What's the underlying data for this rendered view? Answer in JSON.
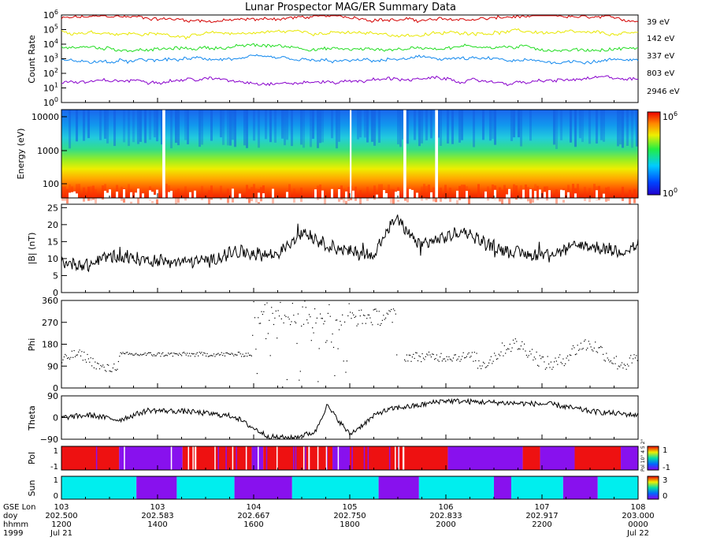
{
  "title": "Lunar Prospector MAG/ER Summary Data",
  "colors": {
    "c39": "#d40000",
    "c142": "#e8e800",
    "c337": "#22dd22",
    "c803": "#1188ee",
    "c2946": "#8800cc",
    "pol_pos": "#ee1111",
    "pol_neg": "#8811ee",
    "sun_lit": "#00eeee",
    "sun_dark": "#8811ee"
  },
  "chart_data": [
    {
      "type": "line",
      "panel": "count_rate",
      "ylabel": "Count Rate",
      "yscale": "log",
      "ylim": [
        1,
        1000000
      ],
      "yticks": [
        "10",
        "10",
        "10",
        "10",
        "10",
        "10",
        "10"
      ],
      "yexps": [
        "6",
        "5",
        "4",
        "3",
        "2",
        "1",
        "0"
      ],
      "series": [
        {
          "name": "39 eV",
          "base_log10": 5.75
        },
        {
          "name": "142 eV",
          "base_log10": 4.75
        },
        {
          "name": "337 eV",
          "base_log10": 3.75
        },
        {
          "name": "803 eV",
          "base_log10": 2.9
        },
        {
          "name": "2946 eV",
          "base_log10": 1.5
        }
      ]
    },
    {
      "type": "heatmap",
      "panel": "energy_spectrogram",
      "ylabel": "Energy (eV)",
      "yscale": "log",
      "yticks": [
        "10000",
        "1000",
        "100"
      ],
      "colorbar": {
        "base": "10",
        "min_exp": "0",
        "max_exp": "6"
      }
    },
    {
      "type": "line",
      "panel": "B_magnitude",
      "ylabel": "|B| (nT)",
      "ylim": [
        0,
        26
      ],
      "yticks": [
        "25",
        "20",
        "15",
        "10",
        "5",
        "0"
      ],
      "knots_t": [
        0,
        0.05,
        0.08,
        0.12,
        0.2,
        0.26,
        0.3,
        0.37,
        0.42,
        0.46,
        0.5,
        0.54,
        0.58,
        0.62,
        0.66,
        0.7,
        0.74,
        0.78,
        0.82,
        0.86,
        0.9,
        0.94,
        0.97,
        1
      ],
      "knots_v": [
        9,
        8,
        11,
        10,
        9,
        9.5,
        12,
        11,
        18,
        14,
        12,
        11,
        22,
        14,
        16,
        18,
        14,
        12,
        11,
        12,
        14,
        13,
        12,
        14
      ]
    },
    {
      "type": "scatter",
      "panel": "phi",
      "ylabel": "Phi",
      "ylim": [
        0,
        360
      ],
      "yticks": [
        "360",
        "270",
        "180",
        "90",
        "0"
      ]
    },
    {
      "type": "line",
      "panel": "theta",
      "ylabel": "Theta",
      "ylim": [
        -90,
        90
      ],
      "yticks": [
        "90",
        "0",
        "−90"
      ],
      "knots_t": [
        0,
        0.05,
        0.1,
        0.15,
        0.22,
        0.3,
        0.33,
        0.36,
        0.4,
        0.44,
        0.46,
        0.5,
        0.55,
        0.58,
        0.62,
        0.66,
        0.72,
        0.78,
        0.85,
        0.92,
        1
      ],
      "knots_v": [
        0,
        10,
        -10,
        30,
        25,
        5,
        -40,
        -80,
        -85,
        -60,
        50,
        -70,
        20,
        40,
        50,
        70,
        65,
        60,
        55,
        25,
        10
      ]
    },
    {
      "type": "heatmap",
      "panel": "polarity",
      "ylabel": "Pol",
      "yticks": [
        "1",
        "-1"
      ],
      "colorbar_ticks": [
        "1",
        "-1"
      ],
      "bands": [
        [
          "pos",
          0,
          0.1
        ],
        [
          "neg",
          0.1,
          0.21
        ],
        [
          "pos",
          0.21,
          0.33
        ],
        [
          "neg",
          0.33,
          0.35
        ],
        [
          "pos",
          0.35,
          0.47
        ],
        [
          "neg",
          0.47,
          0.5
        ],
        [
          "pos",
          0.5,
          0.67
        ],
        [
          "neg",
          0.67,
          0.8
        ],
        [
          "pos",
          0.8,
          0.83
        ],
        [
          "neg",
          0.83,
          0.89
        ],
        [
          "pos",
          0.89,
          0.97
        ],
        [
          "neg",
          0.97,
          1
        ]
      ],
      "side_label": "Pol 10° 4 5 2°"
    },
    {
      "type": "heatmap",
      "panel": "sun",
      "ylabel": "Sun",
      "yticks": [
        "1",
        "0"
      ],
      "colorbar_ticks": [
        "3",
        "0"
      ],
      "bands": [
        [
          "lit",
          0,
          0.13
        ],
        [
          "dark",
          0.13,
          0.2
        ],
        [
          "lit",
          0.2,
          0.3
        ],
        [
          "dark",
          0.3,
          0.4
        ],
        [
          "lit",
          0.4,
          0.55
        ],
        [
          "dark",
          0.55,
          0.62
        ],
        [
          "lit",
          0.62,
          0.75
        ],
        [
          "dark",
          0.75,
          0.78
        ],
        [
          "lit",
          0.78,
          0.87
        ],
        [
          "dark",
          0.87,
          0.93
        ],
        [
          "lit",
          0.93,
          1
        ]
      ]
    }
  ],
  "x_axis": {
    "row_labels": [
      "GSE Lon",
      "doy",
      "hhmm",
      "1999"
    ],
    "ticks": [
      {
        "lon": "103",
        "doy": "202.500",
        "hhmm": "1200",
        "date": "Jul 21"
      },
      {
        "lon": "103",
        "doy": "202.583",
        "hhmm": "1400",
        "date": ""
      },
      {
        "lon": "104",
        "doy": "202.667",
        "hhmm": "1600",
        "date": ""
      },
      {
        "lon": "105",
        "doy": "202.750",
        "hhmm": "1800",
        "date": ""
      },
      {
        "lon": "106",
        "doy": "202.833",
        "hhmm": "2000",
        "date": ""
      },
      {
        "lon": "107",
        "doy": "202.917",
        "hhmm": "2200",
        "date": ""
      },
      {
        "lon": "108",
        "doy": "203.000",
        "hhmm": "0000",
        "date": "Jul 22"
      }
    ]
  }
}
